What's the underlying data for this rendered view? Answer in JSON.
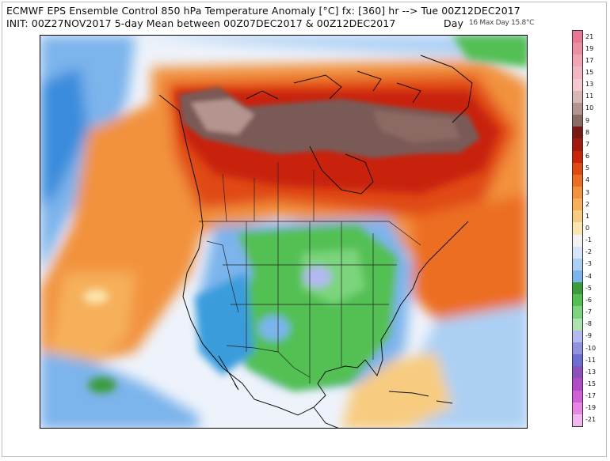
{
  "header": {
    "title_line1": "ECMWF EPS Ensemble Control 850 hPa Temperature Anomaly [°C] fx: [360] hr --> Tue 00Z12DEC2017",
    "title_line2": "INIT: 00Z27NOV2017 5-day Mean between 00Z07DEC2017 & 00Z12DEC2017",
    "day_label": "Day",
    "overlay_label": "16 Max Day 15.8°C"
  },
  "colorbar": {
    "levels": [
      21,
      19,
      17,
      15,
      13,
      11,
      10,
      9,
      8,
      7,
      6,
      5,
      4,
      3,
      2,
      1,
      0,
      -1,
      -2,
      -3,
      -4,
      -5,
      -6,
      -7,
      -8,
      -9,
      -10,
      -11,
      -13,
      -15,
      -17,
      -19,
      -21
    ],
    "colors": [
      "#e87894",
      "#ec8ea4",
      "#f0a4b4",
      "#f2b6c2",
      "#f4c8d0",
      "#d6b8b4",
      "#b4948e",
      "#8c6a64",
      "#7a1818",
      "#a01a0e",
      "#c8240a",
      "#e04a12",
      "#ec6e24",
      "#f2923c",
      "#f6b05a",
      "#f8cc80",
      "#fbe6b0",
      "#f2f2f2",
      "#d6e6f8",
      "#acd0f4",
      "#7cb4ec",
      "#3a9c3a",
      "#52c052",
      "#7cd47c",
      "#aee2ae",
      "#b2b8f0",
      "#8e92e0",
      "#6c6ed0",
      "#8c50b8",
      "#b04cc8",
      "#d060d8",
      "#e886e6",
      "#f2b6f0"
    ]
  },
  "map": {
    "description_colors": {
      "warm_core": "#7a5a56",
      "warm_red": "#c8240a",
      "warm_orange": "#f2923c",
      "cold_green": "#52c052",
      "cold_blue": "#7cb4ec"
    }
  }
}
